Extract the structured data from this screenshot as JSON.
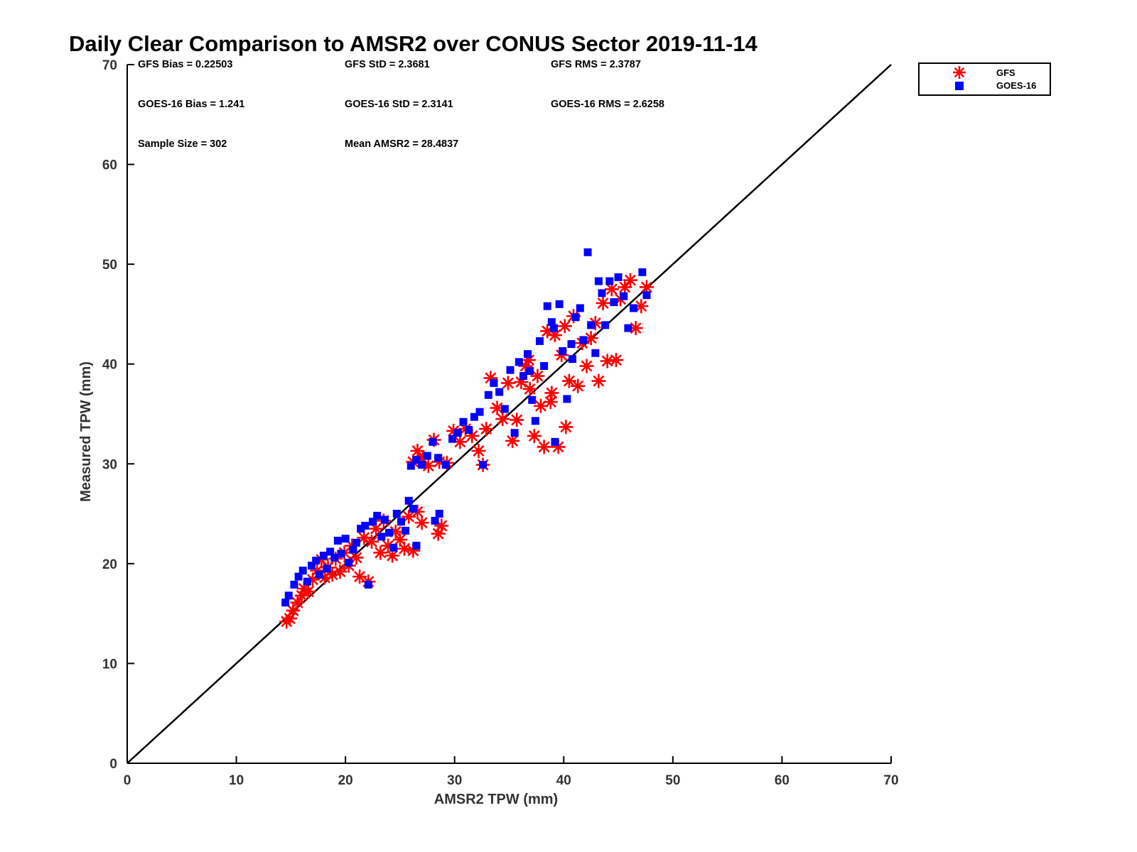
{
  "chart_data": {
    "type": "scatter",
    "title": "Daily Clear Comparison to AMSR2 over CONUS Sector 2019-11-14",
    "xlabel": "AMSR2 TPW (mm)",
    "ylabel": "Measured TPW (mm)",
    "xlim": [
      0,
      70
    ],
    "ylim": [
      0,
      70
    ],
    "xticks": [
      "0",
      "10",
      "20",
      "30",
      "40",
      "50",
      "60",
      "70"
    ],
    "yticks": [
      "0",
      "10",
      "20",
      "30",
      "40",
      "50",
      "60",
      "70"
    ],
    "reference_line": {
      "name": "1:1 line",
      "x": [
        0,
        70
      ],
      "y": [
        0,
        70
      ],
      "color": "#000000"
    },
    "stats": {
      "gfs_bias": "GFS Bias = 0.22503",
      "gfs_std": "GFS StD = 2.3681",
      "gfs_rms": "GFS RMS = 2.3787",
      "goes_bias": "GOES-16 Bias = 1.241",
      "goes_std": "GOES-16 StD = 2.3141",
      "goes_rms": "GOES-16 RMS = 2.6258",
      "sample_size": "Sample Size = 302",
      "mean_amsr2": "Mean AMSR2 = 28.4837"
    },
    "legend": {
      "position": "top-right, outside plot",
      "entries": [
        {
          "label": "GFS",
          "marker": "asterisk",
          "color": "#ff0000"
        },
        {
          "label": "GOES-16",
          "marker": "square",
          "color": "#0000ff"
        }
      ]
    },
    "series": [
      {
        "name": "GFS",
        "marker": "asterisk",
        "color": "#ff0000",
        "points": [
          [
            14.6,
            14.2
          ],
          [
            14.9,
            14.5
          ],
          [
            15.2,
            15.3
          ],
          [
            15.6,
            16.1
          ],
          [
            16.0,
            16.8
          ],
          [
            16.2,
            17.5
          ],
          [
            16.6,
            17.2
          ],
          [
            17.0,
            18.4
          ],
          [
            17.4,
            19.3
          ],
          [
            17.8,
            20.4
          ],
          [
            18.1,
            18.6
          ],
          [
            18.4,
            19.6
          ],
          [
            18.8,
            18.9
          ],
          [
            19.1,
            20.5
          ],
          [
            19.5,
            19.2
          ],
          [
            19.9,
            21.1
          ],
          [
            20.3,
            19.8
          ],
          [
            20.6,
            21.8
          ],
          [
            21.0,
            20.6
          ],
          [
            21.3,
            18.7
          ],
          [
            21.7,
            22.6
          ],
          [
            22.1,
            18.2
          ],
          [
            22.4,
            22.2
          ],
          [
            22.8,
            23.5
          ],
          [
            23.2,
            21.1
          ],
          [
            23.5,
            24.3
          ],
          [
            23.9,
            21.8
          ],
          [
            24.3,
            20.8
          ],
          [
            24.6,
            23.2
          ],
          [
            25.0,
            22.4
          ],
          [
            25.4,
            21.5
          ],
          [
            25.8,
            24.7
          ],
          [
            26.2,
            21.3
          ],
          [
            26.6,
            25.2
          ],
          [
            27.0,
            24.1
          ],
          [
            28.5,
            23.0
          ],
          [
            28.8,
            23.8
          ],
          [
            26.2,
            30.2
          ],
          [
            26.6,
            31.3
          ],
          [
            27.1,
            30.5
          ],
          [
            27.6,
            29.8
          ],
          [
            28.1,
            32.4
          ],
          [
            28.6,
            30.2
          ],
          [
            29.3,
            30.1
          ],
          [
            29.9,
            33.3
          ],
          [
            30.5,
            32.2
          ],
          [
            31.0,
            33.5
          ],
          [
            31.6,
            32.8
          ],
          [
            32.2,
            31.3
          ],
          [
            32.6,
            29.9
          ],
          [
            32.9,
            33.5
          ],
          [
            33.3,
            38.6
          ],
          [
            33.9,
            35.6
          ],
          [
            34.4,
            34.5
          ],
          [
            34.9,
            38.1
          ],
          [
            35.3,
            32.3
          ],
          [
            35.7,
            34.4
          ],
          [
            36.1,
            38.2
          ],
          [
            36.5,
            39.8
          ],
          [
            36.9,
            37.5
          ],
          [
            37.3,
            32.8
          ],
          [
            37.6,
            38.8
          ],
          [
            37.9,
            35.8
          ],
          [
            38.2,
            31.7
          ],
          [
            38.5,
            43.3
          ],
          [
            38.8,
            36.2
          ],
          [
            39.2,
            42.9
          ],
          [
            39.5,
            31.7
          ],
          [
            39.8,
            40.9
          ],
          [
            40.2,
            33.7
          ],
          [
            40.5,
            38.3
          ],
          [
            40.9,
            44.8
          ],
          [
            41.3,
            37.8
          ],
          [
            41.7,
            42.1
          ],
          [
            42.1,
            39.8
          ],
          [
            42.5,
            42.6
          ],
          [
            42.9,
            44.1
          ],
          [
            43.2,
            38.3
          ],
          [
            43.6,
            46.1
          ],
          [
            44.0,
            40.3
          ],
          [
            44.4,
            47.5
          ],
          [
            44.8,
            40.4
          ],
          [
            45.2,
            46.5
          ],
          [
            45.6,
            47.7
          ],
          [
            46.1,
            48.4
          ],
          [
            46.6,
            43.6
          ],
          [
            47.1,
            45.8
          ],
          [
            47.6,
            47.7
          ],
          [
            40.1,
            43.8
          ],
          [
            38.9,
            37.1
          ],
          [
            36.8,
            40.4
          ]
        ]
      },
      {
        "name": "GOES-16",
        "marker": "square",
        "color": "#0000ff",
        "points": [
          [
            14.5,
            16.1
          ],
          [
            14.8,
            16.8
          ],
          [
            15.3,
            17.9
          ],
          [
            15.7,
            18.7
          ],
          [
            16.1,
            19.3
          ],
          [
            16.5,
            18.2
          ],
          [
            16.9,
            19.8
          ],
          [
            17.3,
            20.3
          ],
          [
            17.6,
            18.9
          ],
          [
            18.0,
            20.8
          ],
          [
            18.3,
            19.5
          ],
          [
            18.6,
            21.2
          ],
          [
            19.0,
            20.6
          ],
          [
            19.3,
            22.3
          ],
          [
            19.6,
            21.0
          ],
          [
            20.0,
            22.5
          ],
          [
            20.3,
            20.1
          ],
          [
            20.7,
            21.4
          ],
          [
            21.0,
            22.1
          ],
          [
            21.4,
            23.5
          ],
          [
            21.8,
            23.8
          ],
          [
            22.1,
            17.9
          ],
          [
            22.5,
            24.2
          ],
          [
            22.9,
            24.8
          ],
          [
            23.3,
            22.7
          ],
          [
            23.6,
            24.4
          ],
          [
            24.0,
            23.1
          ],
          [
            24.4,
            21.6
          ],
          [
            24.7,
            25.0
          ],
          [
            25.1,
            24.2
          ],
          [
            25.5,
            23.3
          ],
          [
            25.8,
            26.3
          ],
          [
            26.2,
            25.5
          ],
          [
            26.5,
            21.8
          ],
          [
            28.2,
            24.3
          ],
          [
            28.6,
            25.0
          ],
          [
            26.0,
            29.8
          ],
          [
            26.5,
            30.4
          ],
          [
            27.0,
            29.9
          ],
          [
            27.5,
            30.8
          ],
          [
            28.0,
            32.2
          ],
          [
            28.5,
            30.6
          ],
          [
            29.2,
            29.9
          ],
          [
            29.8,
            32.5
          ],
          [
            30.3,
            33.1
          ],
          [
            30.8,
            34.2
          ],
          [
            31.3,
            33.4
          ],
          [
            31.8,
            34.7
          ],
          [
            32.3,
            35.2
          ],
          [
            32.6,
            29.9
          ],
          [
            33.1,
            36.9
          ],
          [
            33.6,
            38.1
          ],
          [
            34.1,
            37.2
          ],
          [
            34.6,
            35.5
          ],
          [
            35.1,
            39.4
          ],
          [
            35.5,
            33.1
          ],
          [
            35.9,
            40.2
          ],
          [
            36.3,
            38.8
          ],
          [
            36.7,
            41.0
          ],
          [
            37.1,
            36.4
          ],
          [
            37.4,
            34.3
          ],
          [
            37.8,
            42.3
          ],
          [
            38.2,
            39.8
          ],
          [
            38.5,
            45.8
          ],
          [
            38.9,
            44.2
          ],
          [
            39.2,
            32.2
          ],
          [
            39.6,
            46.0
          ],
          [
            39.9,
            41.3
          ],
          [
            40.3,
            36.5
          ],
          [
            40.7,
            42.0
          ],
          [
            41.1,
            44.7
          ],
          [
            41.5,
            45.6
          ],
          [
            41.8,
            42.4
          ],
          [
            42.2,
            51.2
          ],
          [
            42.5,
            43.9
          ],
          [
            42.9,
            41.1
          ],
          [
            43.2,
            48.3
          ],
          [
            43.5,
            47.1
          ],
          [
            43.8,
            43.9
          ],
          [
            44.2,
            48.3
          ],
          [
            44.6,
            46.2
          ],
          [
            45.0,
            48.7
          ],
          [
            45.5,
            46.8
          ],
          [
            45.9,
            43.6
          ],
          [
            46.4,
            45.6
          ],
          [
            47.2,
            49.2
          ],
          [
            47.6,
            46.9
          ],
          [
            39.1,
            43.6
          ],
          [
            36.9,
            39.3
          ],
          [
            40.8,
            40.5
          ]
        ]
      }
    ]
  }
}
